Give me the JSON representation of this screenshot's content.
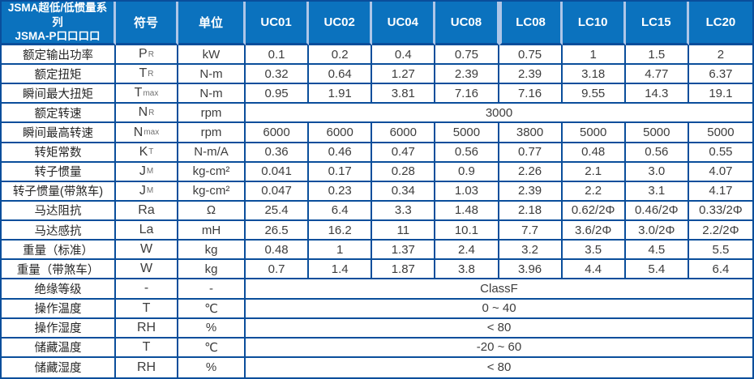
{
  "header": {
    "title_line1": "JSMA超低/低惯量系列",
    "title_line2": "JSMA-P口口口口",
    "symbol_col": "符号",
    "unit_col": "单位",
    "models": [
      "UC01",
      "UC02",
      "UC04",
      "UC08",
      "LC08",
      "LC10",
      "LC15",
      "LC20"
    ]
  },
  "rows": [
    {
      "label": "额定输出功率",
      "symbol": "P",
      "sub": "R",
      "unit": "kW",
      "values": [
        "0.1",
        "0.2",
        "0.4",
        "0.75",
        "0.75",
        "1",
        "1.5",
        "2"
      ]
    },
    {
      "label": "额定扭矩",
      "symbol": "T",
      "sub": "R",
      "unit": "N-m",
      "values": [
        "0.32",
        "0.64",
        "1.27",
        "2.39",
        "2.39",
        "3.18",
        "4.77",
        "6.37"
      ]
    },
    {
      "label": "瞬间最大扭矩",
      "symbol": "T",
      "sub": "max",
      "unit": "N-m",
      "values": [
        "0.95",
        "1.91",
        "3.81",
        "7.16",
        "7.16",
        "9.55",
        "14.3",
        "19.1"
      ]
    },
    {
      "label": "额定转速",
      "symbol": "N",
      "sub": "R",
      "unit": "rpm",
      "merged": "3000"
    },
    {
      "label": "瞬间最高转速",
      "symbol": "N",
      "sub": "max",
      "unit": "rpm",
      "values": [
        "6000",
        "6000",
        "6000",
        "5000",
        "3800",
        "5000",
        "5000",
        "5000"
      ]
    },
    {
      "label": "转矩常数",
      "symbol": "K",
      "sub": "T",
      "unit": "N-m/A",
      "values": [
        "0.36",
        "0.46",
        "0.47",
        "0.56",
        "0.77",
        "0.48",
        "0.56",
        "0.55"
      ]
    },
    {
      "label": "转子惯量",
      "symbol": "J",
      "sub": "M",
      "unit": "kg-cm²",
      "values": [
        "0.041",
        "0.17",
        "0.28",
        "0.9",
        "2.26",
        "2.1",
        "3.0",
        "4.07"
      ]
    },
    {
      "label": "转子惯量(带煞车)",
      "symbol": "J",
      "sub": "M",
      "unit": "kg-cm²",
      "values": [
        "0.047",
        "0.23",
        "0.34",
        "1.03",
        "2.39",
        "2.2",
        "3.1",
        "4.17"
      ]
    },
    {
      "label": "马达阻抗",
      "symbol": "Ra",
      "sub": "",
      "unit": "Ω",
      "values": [
        "25.4",
        "6.4",
        "3.3",
        "1.48",
        "2.18",
        "0.62/2Φ",
        "0.46/2Φ",
        "0.33/2Φ"
      ]
    },
    {
      "label": "马达感抗",
      "symbol": "La",
      "sub": "",
      "unit": "mH",
      "values": [
        "26.5",
        "16.2",
        "11",
        "10.1",
        "7.7",
        "3.6/2Φ",
        "3.0/2Φ",
        "2.2/2Φ"
      ]
    },
    {
      "label": "重量（标准）",
      "symbol": "W",
      "sub": "",
      "unit": "kg",
      "values": [
        "0.48",
        "1",
        "1.37",
        "2.4",
        "3.2",
        "3.5",
        "4.5",
        "5.5"
      ]
    },
    {
      "label": "重量（带煞车）",
      "symbol": "W",
      "sub": "",
      "unit": "kg",
      "values": [
        "0.7",
        "1.4",
        "1.87",
        "3.8",
        "3.96",
        "4.4",
        "5.4",
        "6.4"
      ]
    },
    {
      "label": "绝缘等级",
      "symbol": "-",
      "sub": "",
      "unit": "-",
      "merged": "ClassF"
    },
    {
      "label": "操作温度",
      "symbol": "T",
      "sub": "",
      "unit": "℃",
      "merged": "0 ~ 40"
    },
    {
      "label": "操作湿度",
      "symbol": "RH",
      "sub": "",
      "unit": "%",
      "merged": "< 80"
    },
    {
      "label": "储藏温度",
      "symbol": "T",
      "sub": "",
      "unit": "℃",
      "merged": "-20 ~ 60"
    },
    {
      "label": "储藏湿度",
      "symbol": "RH",
      "sub": "",
      "unit": "%",
      "merged": "< 80"
    }
  ],
  "colors": {
    "header_bg": "#0b72be",
    "header_text": "#ffffff",
    "border": "#0a4e9b",
    "header_divider": "#aec6e8",
    "text": "#3d3d3d"
  }
}
